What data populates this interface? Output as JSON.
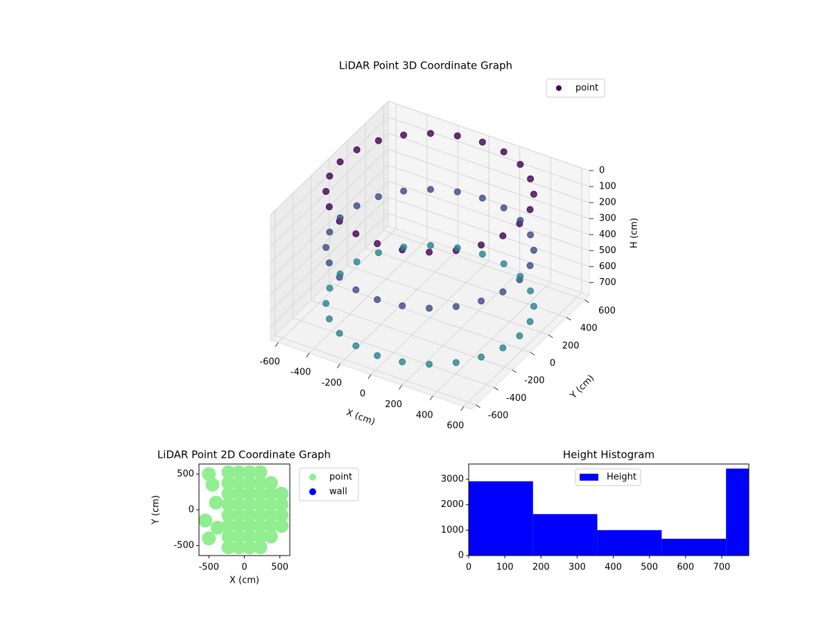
{
  "chart_data": [
    {
      "type": "scatter3d",
      "title": "LiDAR Point 3D Coordinate Graph",
      "xlabel": "X (cm)",
      "ylabel": "Y (cm)",
      "zlabel": "H (cm)",
      "series": [
        {
          "name": "point",
          "x": [
            580,
            560,
            502,
            410,
            290,
            150,
            0,
            -150,
            -290,
            -410,
            -502,
            -560,
            -580,
            -560,
            -502,
            -410,
            -290,
            -150,
            0,
            150,
            290,
            410,
            502,
            560,
            580,
            560,
            502,
            410,
            290,
            150,
            0,
            -150,
            -290,
            -410,
            -502,
            -560,
            -580,
            -560,
            -502,
            -410,
            -290,
            -150,
            0,
            150,
            290,
            410,
            502,
            560,
            580,
            560,
            502,
            410,
            290,
            150,
            0,
            -150,
            -290,
            -410,
            -502,
            -560,
            -580,
            -560,
            -502,
            -410,
            -290,
            -150,
            0,
            150,
            290,
            410,
            502,
            560
          ],
          "y": [
            0,
            150,
            290,
            410,
            502,
            560,
            580,
            560,
            502,
            410,
            290,
            150,
            0,
            -150,
            -290,
            -410,
            -502,
            -560,
            -580,
            -560,
            -502,
            -410,
            -290,
            -150,
            0,
            150,
            290,
            410,
            502,
            560,
            580,
            560,
            502,
            410,
            290,
            150,
            0,
            -150,
            -290,
            -410,
            -502,
            -560,
            -580,
            -560,
            -502,
            -410,
            -290,
            -150,
            0,
            150,
            290,
            410,
            502,
            560,
            580,
            560,
            502,
            410,
            290,
            150,
            0,
            -150,
            -290,
            -410,
            -502,
            -560,
            -580,
            -560,
            -502,
            -410,
            -290,
            -150
          ],
          "z": [
            0,
            0,
            0,
            0,
            0,
            0,
            0,
            0,
            0,
            0,
            0,
            0,
            0,
            0,
            0,
            0,
            0,
            0,
            0,
            0,
            0,
            0,
            0,
            0,
            350,
            350,
            350,
            350,
            350,
            350,
            350,
            350,
            350,
            350,
            350,
            350,
            350,
            350,
            350,
            350,
            350,
            350,
            350,
            350,
            350,
            350,
            350,
            350,
            700,
            700,
            700,
            700,
            700,
            700,
            700,
            700,
            700,
            700,
            700,
            700,
            700,
            700,
            700,
            700,
            700,
            700,
            700,
            700,
            700,
            700,
            700,
            700
          ]
        }
      ],
      "colormap": [
        "#440154",
        "#3b528b",
        "#21918c"
      ],
      "xlim": [
        -650,
        650
      ],
      "ylim": [
        -650,
        650
      ],
      "zlim": [
        0,
        780
      ],
      "z_inverted": true,
      "xticks": [
        -600,
        -400,
        -200,
        0,
        200,
        400,
        600
      ],
      "yticks": [
        -600,
        -400,
        -200,
        0,
        200,
        400,
        600
      ],
      "zticks": [
        0,
        100,
        200,
        300,
        400,
        500,
        600,
        700
      ],
      "legend": "upper right"
    },
    {
      "type": "scatter",
      "title": "LiDAR Point 2D Coordinate Graph",
      "xlabel": "X (cm)",
      "ylabel": "Y (cm)",
      "series": [
        {
          "name": "point",
          "color": "#90ee90",
          "x": [
            75,
            75,
            75,
            75,
            75,
            75,
            75,
            75,
            225,
            225,
            225,
            225,
            225,
            225,
            225,
            225,
            -75,
            -75,
            -75,
            -75,
            -75,
            -75,
            -75,
            -75,
            -225,
            -225,
            -225,
            -225,
            -225,
            -225,
            -225,
            -225,
            375,
            375,
            375,
            375,
            375,
            375,
            525,
            525,
            525,
            525,
            -500,
            -450,
            -500,
            -400,
            -550,
            -380
          ],
          "y": [
            -525,
            -375,
            -225,
            -75,
            75,
            225,
            375,
            525,
            -525,
            -375,
            -225,
            -75,
            75,
            225,
            375,
            525,
            -525,
            -375,
            -225,
            -75,
            75,
            225,
            375,
            525,
            -525,
            -375,
            -225,
            -75,
            75,
            225,
            375,
            525,
            -375,
            -225,
            -75,
            75,
            225,
            375,
            -225,
            -75,
            75,
            225,
            500,
            350,
            -400,
            100,
            -150,
            -250
          ]
        },
        {
          "name": "wall",
          "color": "#0000ff",
          "x": [],
          "y": []
        }
      ],
      "xlim": [
        -640,
        640
      ],
      "ylim": [
        -640,
        640
      ],
      "xticks": [
        -500,
        0,
        500
      ],
      "yticks": [
        -500,
        0,
        500
      ],
      "legend": "outside right"
    },
    {
      "type": "histogram",
      "title": "Height Histogram",
      "series": [
        {
          "name": "Height",
          "color": "#0000ff",
          "bins": [
            0,
            178,
            356,
            534,
            712,
            890
          ],
          "values": [
            2920,
            1630,
            1000,
            660,
            3420
          ]
        }
      ],
      "xlim": [
        0,
        775
      ],
      "ylim": [
        0,
        3600
      ],
      "xticks": [
        0,
        100,
        200,
        300,
        400,
        500,
        600,
        700
      ],
      "yticks": [
        0,
        1000,
        2000,
        3000
      ],
      "legend": "upper center"
    }
  ]
}
